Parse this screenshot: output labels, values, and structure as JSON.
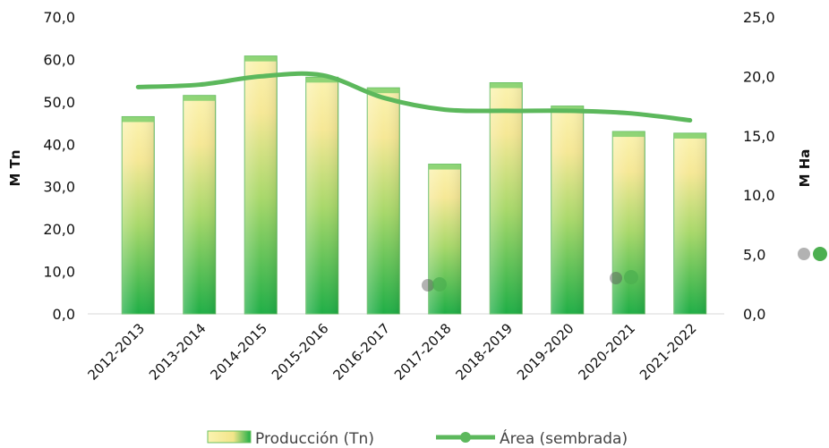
{
  "chart_data": {
    "type": "bar",
    "categories": [
      "2012-2013",
      "2013-2014",
      "2014-2015",
      "2015-2016",
      "2016-2017",
      "2017-2018",
      "2018-2019",
      "2019-2020",
      "2020-2021",
      "2021-2022"
    ],
    "series": [
      {
        "name": "Producción (Tn)",
        "type": "bar",
        "axis": "left",
        "values": [
          46.5,
          51.5,
          60.8,
          55.8,
          53.3,
          35.3,
          54.5,
          49.0,
          43.0,
          42.6
        ]
      },
      {
        "name": "Área (sembrada)",
        "type": "line",
        "axis": "right",
        "values": [
          19.1,
          19.3,
          20.0,
          20.1,
          18.2,
          17.2,
          17.1,
          17.1,
          16.9,
          16.3
        ]
      }
    ],
    "ylabel": "M Tn",
    "y2label": "M Ha",
    "ylim": [
      0,
      70
    ],
    "y2lim": [
      0,
      25
    ],
    "yticks": [
      "0,0",
      "10,0",
      "20,0",
      "30,0",
      "40,0",
      "50,0",
      "60,0",
      "70,0"
    ],
    "y2ticks": [
      "0,0",
      "5,0",
      "10,0",
      "15,0",
      "20,0",
      "25,0"
    ],
    "legend": "bottom",
    "grid": false,
    "colors": {
      "bar_top": "#fff7b8",
      "bar_mid": "#f2e58a",
      "bar_bottom": "#1fb24a",
      "bar_edge": "#5bbf5e",
      "line": "#5cb85c"
    }
  }
}
